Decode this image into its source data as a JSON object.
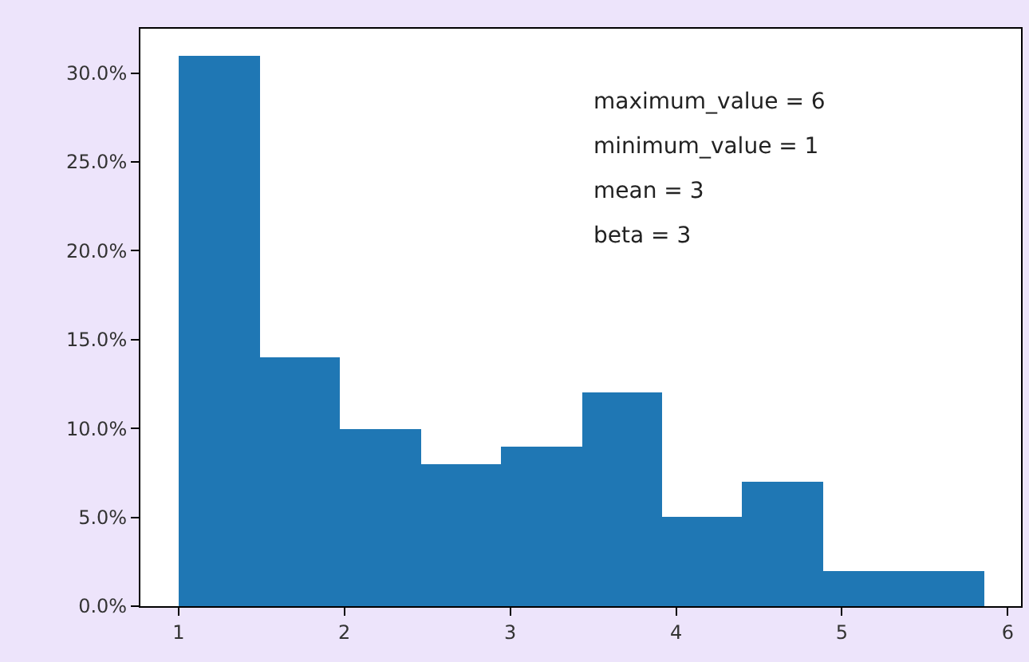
{
  "chart_data": {
    "type": "histogram",
    "bins": [
      1,
      1.49,
      1.97,
      2.46,
      2.94,
      3.43,
      3.92,
      4.4,
      4.89,
      5.37,
      5.86
    ],
    "values": [
      31,
      14,
      10,
      8,
      9,
      12,
      5,
      7,
      2,
      2
    ],
    "color": "#1f77b4",
    "xlim": [
      0.77,
      6.08
    ],
    "xticks": [
      1,
      2,
      3,
      4,
      5,
      6
    ],
    "ylim": [
      0,
      32.5
    ],
    "yticks": [
      {
        "value": 0,
        "label": "0.0%"
      },
      {
        "value": 5,
        "label": "5.0%"
      },
      {
        "value": 10,
        "label": "10.0%"
      },
      {
        "value": 15,
        "label": "15.0%"
      },
      {
        "value": 20,
        "label": "20.0%"
      },
      {
        "value": 25,
        "label": "25.0%"
      },
      {
        "value": 30,
        "label": "30.0%"
      }
    ],
    "annotations": [
      "maximum_value = 6",
      "minimum_value = 1",
      "mean = 3",
      "beta = 3"
    ]
  }
}
